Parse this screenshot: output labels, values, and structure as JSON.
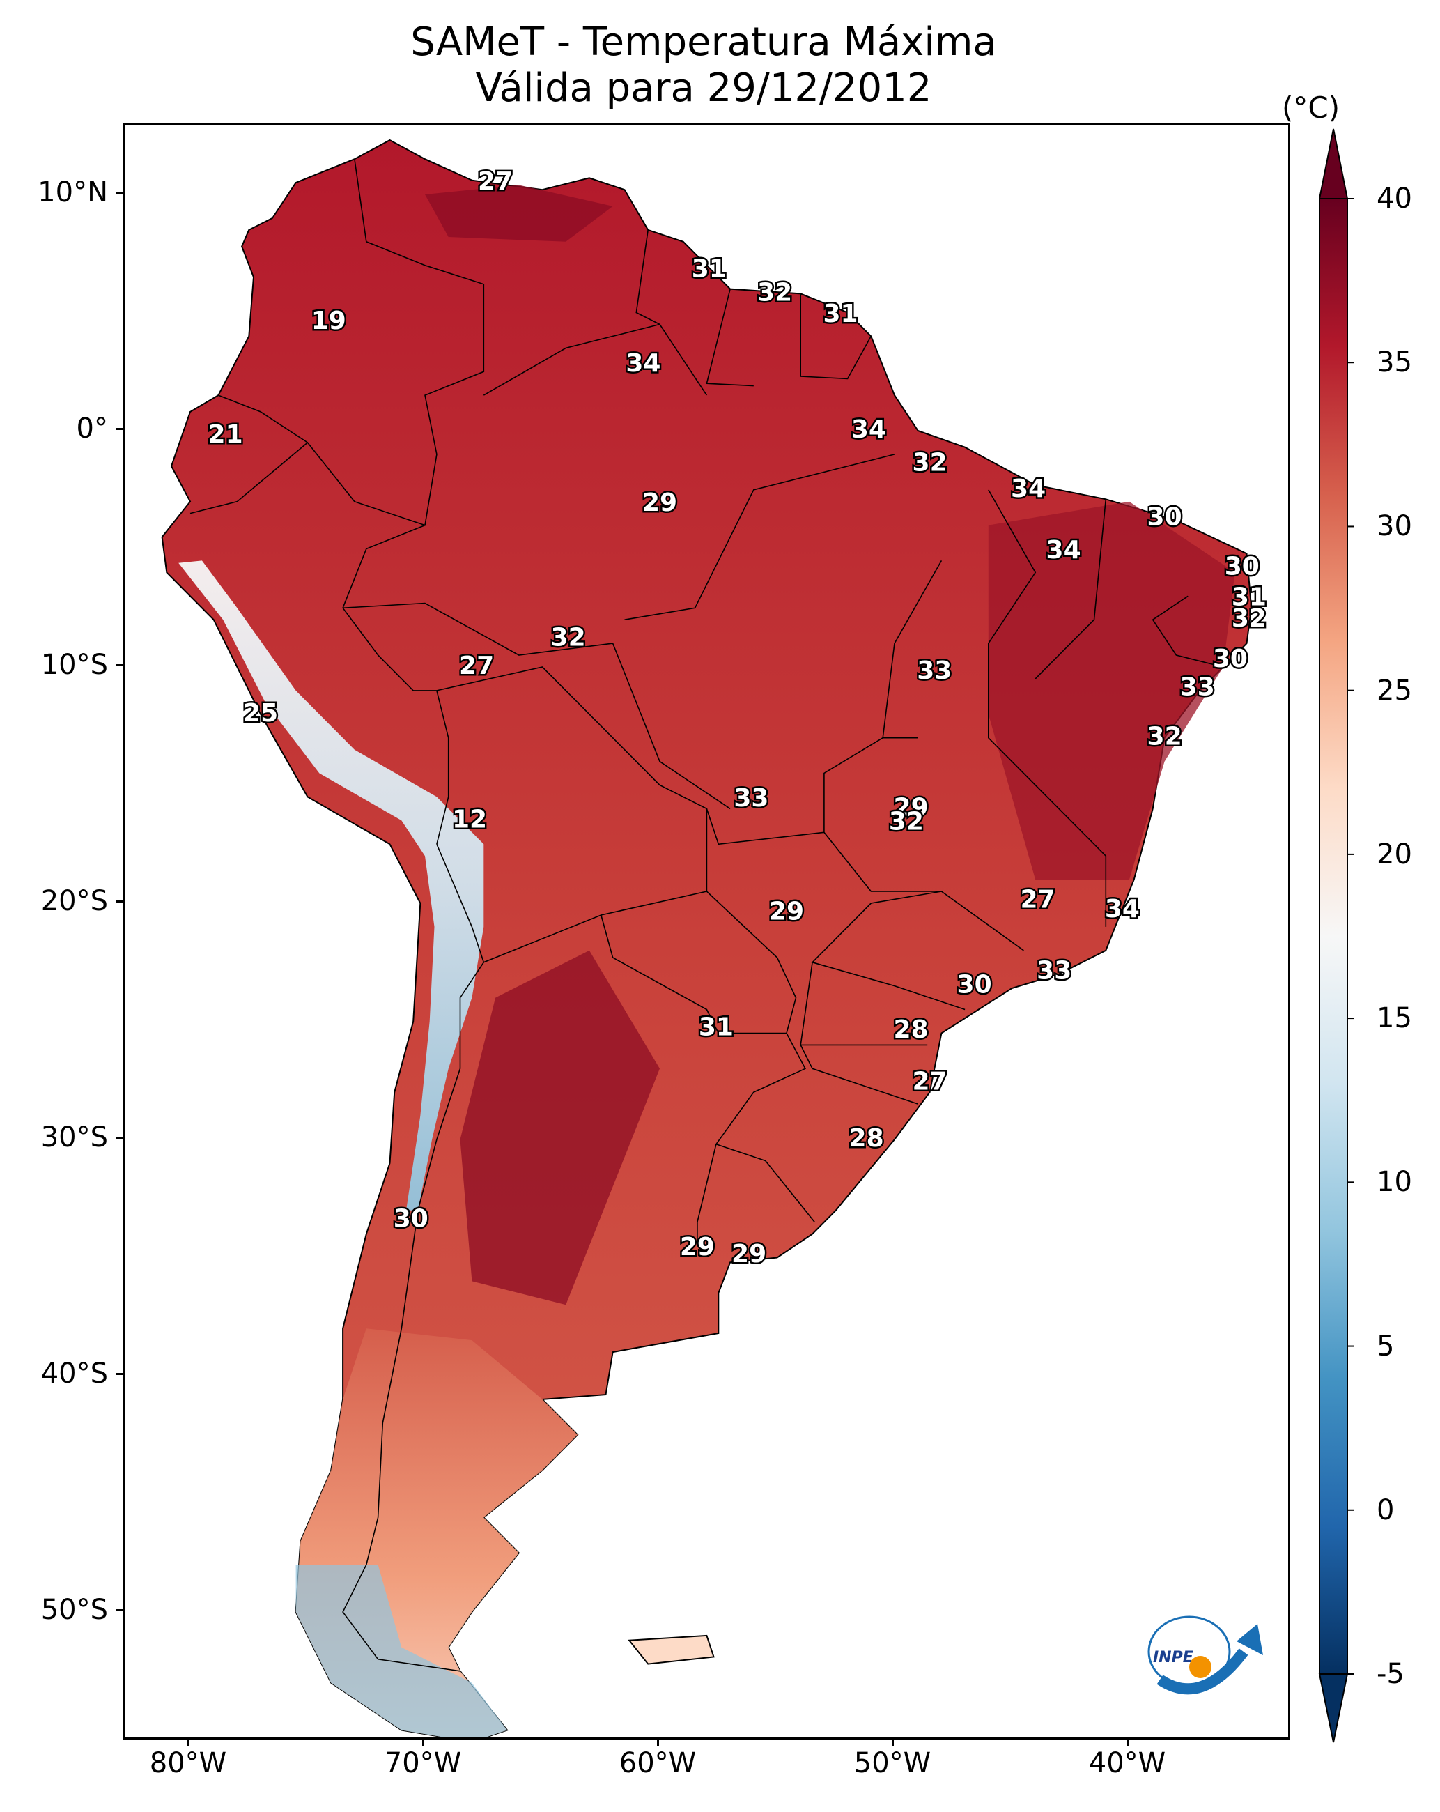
{
  "title_line1": "SAMeT - Temperatura Máxima",
  "title_line2": "Válida para 29/12/2012",
  "colorbar": {
    "unit": "(°C)",
    "ticks": [
      "40",
      "35",
      "30",
      "25",
      "20",
      "15",
      "10",
      "5",
      "0",
      "-5"
    ],
    "range": [
      -5,
      40
    ],
    "colors": [
      "#053061",
      "#2166ac",
      "#4393c3",
      "#92c5de",
      "#d1e5f0",
      "#f7f7f7",
      "#fddbc7",
      "#f4a582",
      "#d6604d",
      "#b2182b",
      "#67001f"
    ]
  },
  "axes": {
    "lat_labels": [
      "10°N",
      "0°",
      "10°S",
      "20°S",
      "30°S",
      "40°S",
      "50°S"
    ],
    "lon_labels": [
      "80°W",
      "70°W",
      "60°W",
      "50°W",
      "40°W"
    ]
  },
  "logo_text": "INPE",
  "city_values": [
    {
      "value": "27",
      "lon": -67.0,
      "lat": 10.5
    },
    {
      "value": "31",
      "lon": -57.9,
      "lat": 6.8
    },
    {
      "value": "32",
      "lon": -55.1,
      "lat": 5.8
    },
    {
      "value": "31",
      "lon": -52.3,
      "lat": 4.9
    },
    {
      "value": "19",
      "lon": -74.1,
      "lat": 4.6
    },
    {
      "value": "34",
      "lon": -60.7,
      "lat": 2.8
    },
    {
      "value": "21",
      "lon": -78.5,
      "lat": -0.2
    },
    {
      "value": "34",
      "lon": -51.1,
      "lat": 0.0
    },
    {
      "value": "32",
      "lon": -48.5,
      "lat": -1.4
    },
    {
      "value": "34",
      "lon": -44.3,
      "lat": -2.5
    },
    {
      "value": "29",
      "lon": -60.0,
      "lat": -3.1
    },
    {
      "value": "30",
      "lon": -38.5,
      "lat": -3.7
    },
    {
      "value": "34",
      "lon": -42.8,
      "lat": -5.1
    },
    {
      "value": "30",
      "lon": -35.2,
      "lat": -5.8
    },
    {
      "value": "31",
      "lon": -34.9,
      "lat": -7.1
    },
    {
      "value": "32",
      "lon": -34.9,
      "lat": -8.0
    },
    {
      "value": "32",
      "lon": -63.9,
      "lat": -8.8
    },
    {
      "value": "30",
      "lon": -35.7,
      "lat": -9.7
    },
    {
      "value": "27",
      "lon": -67.8,
      "lat": -10.0
    },
    {
      "value": "33",
      "lon": -48.3,
      "lat": -10.2
    },
    {
      "value": "33",
      "lon": -37.1,
      "lat": -10.9
    },
    {
      "value": "25",
      "lon": -77.0,
      "lat": -12.0
    },
    {
      "value": "32",
      "lon": -38.5,
      "lat": -13.0
    },
    {
      "value": "33",
      "lon": -56.1,
      "lat": -15.6
    },
    {
      "value": "29",
      "lon": -49.3,
      "lat": -16.0
    },
    {
      "value": "12",
      "lon": -68.1,
      "lat": -16.5
    },
    {
      "value": "32",
      "lon": -49.5,
      "lat": -16.6
    },
    {
      "value": "27",
      "lon": -43.9,
      "lat": -19.9
    },
    {
      "value": "34",
      "lon": -40.3,
      "lat": -20.3
    },
    {
      "value": "29",
      "lon": -54.6,
      "lat": -20.4
    },
    {
      "value": "33",
      "lon": -43.2,
      "lat": -22.9
    },
    {
      "value": "30",
      "lon": -46.6,
      "lat": -23.5
    },
    {
      "value": "31",
      "lon": -57.6,
      "lat": -25.3
    },
    {
      "value": "28",
      "lon": -49.3,
      "lat": -25.4
    },
    {
      "value": "27",
      "lon": -48.5,
      "lat": -27.6
    },
    {
      "value": "28",
      "lon": -51.2,
      "lat": -30.0
    },
    {
      "value": "30",
      "lon": -70.6,
      "lat": -33.4
    },
    {
      "value": "29",
      "lon": -58.4,
      "lat": -34.6
    },
    {
      "value": "29",
      "lon": -56.2,
      "lat": -34.9
    }
  ]
}
